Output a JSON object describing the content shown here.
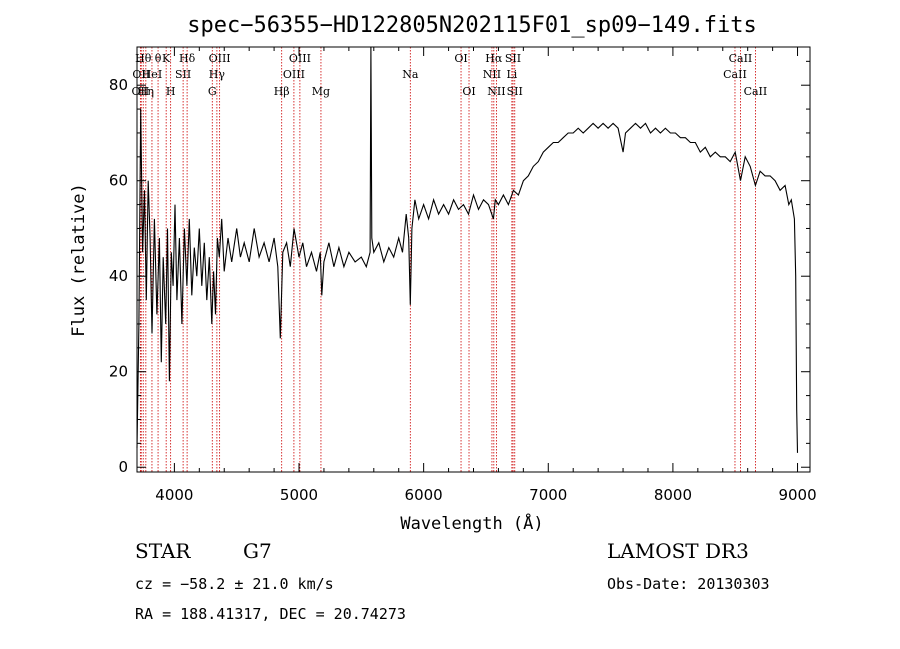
{
  "figure": {
    "object_type": "STAR",
    "spectral_class": "G7",
    "survey": "LAMOST DR3",
    "cz_text": "cz = −58.2 ± 21.0 km/s",
    "obs_date_text": "Obs-Date: 20130303",
    "radec_text": "RA = 188.41317, DEC =  20.74273"
  },
  "chart_data": {
    "type": "line",
    "title": "spec−56355−HD122805N202115F01_sp09−149.fits",
    "xlabel": "Wavelength (Å)",
    "ylabel": "Flux (relative)",
    "xlim": [
      3700,
      9100
    ],
    "ylim": [
      -1,
      88
    ],
    "xticks": [
      4000,
      5000,
      6000,
      7000,
      8000,
      9000
    ],
    "yticks": [
      0,
      20,
      40,
      60,
      80
    ],
    "grid": false,
    "series_color": "#000000",
    "line_marker_color": "#cc0000",
    "spectrum": [
      [
        3700,
        4
      ],
      [
        3715,
        30
      ],
      [
        3730,
        75
      ],
      [
        3745,
        45
      ],
      [
        3760,
        58
      ],
      [
        3775,
        35
      ],
      [
        3790,
        60
      ],
      [
        3805,
        48
      ],
      [
        3820,
        28
      ],
      [
        3840,
        52
      ],
      [
        3860,
        32
      ],
      [
        3880,
        48
      ],
      [
        3895,
        22
      ],
      [
        3910,
        44
      ],
      [
        3930,
        30
      ],
      [
        3945,
        50
      ],
      [
        3960,
        18
      ],
      [
        3975,
        45
      ],
      [
        3990,
        38
      ],
      [
        4005,
        55
      ],
      [
        4020,
        35
      ],
      [
        4040,
        48
      ],
      [
        4060,
        30
      ],
      [
        4080,
        50
      ],
      [
        4100,
        38
      ],
      [
        4120,
        52
      ],
      [
        4140,
        36
      ],
      [
        4160,
        46
      ],
      [
        4180,
        40
      ],
      [
        4200,
        50
      ],
      [
        4220,
        38
      ],
      [
        4240,
        47
      ],
      [
        4260,
        35
      ],
      [
        4280,
        44
      ],
      [
        4300,
        30
      ],
      [
        4315,
        41
      ],
      [
        4330,
        32
      ],
      [
        4345,
        48
      ],
      [
        4360,
        44
      ],
      [
        4380,
        52
      ],
      [
        4400,
        41
      ],
      [
        4430,
        48
      ],
      [
        4460,
        43
      ],
      [
        4500,
        50
      ],
      [
        4530,
        44
      ],
      [
        4560,
        47
      ],
      [
        4600,
        43
      ],
      [
        4640,
        50
      ],
      [
        4680,
        44
      ],
      [
        4720,
        47
      ],
      [
        4760,
        43
      ],
      [
        4800,
        48
      ],
      [
        4830,
        42
      ],
      [
        4850,
        27
      ],
      [
        4870,
        45
      ],
      [
        4900,
        47
      ],
      [
        4930,
        42
      ],
      [
        4960,
        50
      ],
      [
        5000,
        44
      ],
      [
        5030,
        47
      ],
      [
        5060,
        42
      ],
      [
        5100,
        45
      ],
      [
        5140,
        41
      ],
      [
        5170,
        45
      ],
      [
        5183,
        36
      ],
      [
        5200,
        43
      ],
      [
        5240,
        47
      ],
      [
        5280,
        42
      ],
      [
        5320,
        46
      ],
      [
        5360,
        42
      ],
      [
        5400,
        45
      ],
      [
        5450,
        43
      ],
      [
        5500,
        44
      ],
      [
        5540,
        42
      ],
      [
        5570,
        45
      ],
      [
        5577,
        90
      ],
      [
        5584,
        48
      ],
      [
        5600,
        45
      ],
      [
        5640,
        47
      ],
      [
        5680,
        43
      ],
      [
        5720,
        46
      ],
      [
        5760,
        44
      ],
      [
        5800,
        48
      ],
      [
        5830,
        45
      ],
      [
        5860,
        53
      ],
      [
        5880,
        48
      ],
      [
        5893,
        34
      ],
      [
        5906,
        50
      ],
      [
        5930,
        56
      ],
      [
        5960,
        52
      ],
      [
        6000,
        55
      ],
      [
        6040,
        52
      ],
      [
        6080,
        56
      ],
      [
        6120,
        53
      ],
      [
        6160,
        55
      ],
      [
        6200,
        53
      ],
      [
        6240,
        56
      ],
      [
        6280,
        54
      ],
      [
        6320,
        55
      ],
      [
        6360,
        53
      ],
      [
        6400,
        57
      ],
      [
        6440,
        54
      ],
      [
        6480,
        56
      ],
      [
        6520,
        55
      ],
      [
        6560,
        52
      ],
      [
        6575,
        56
      ],
      [
        6600,
        55
      ],
      [
        6640,
        57
      ],
      [
        6680,
        55
      ],
      [
        6720,
        58
      ],
      [
        6760,
        57
      ],
      [
        6800,
        60
      ],
      [
        6840,
        61
      ],
      [
        6880,
        63
      ],
      [
        6920,
        64
      ],
      [
        6960,
        66
      ],
      [
        7000,
        67
      ],
      [
        7040,
        68
      ],
      [
        7080,
        68
      ],
      [
        7120,
        69
      ],
      [
        7160,
        70
      ],
      [
        7200,
        70
      ],
      [
        7240,
        71
      ],
      [
        7280,
        70
      ],
      [
        7320,
        71
      ],
      [
        7360,
        72
      ],
      [
        7400,
        71
      ],
      [
        7440,
        72
      ],
      [
        7480,
        71
      ],
      [
        7520,
        72
      ],
      [
        7560,
        71
      ],
      [
        7600,
        66
      ],
      [
        7620,
        70
      ],
      [
        7660,
        71
      ],
      [
        7700,
        72
      ],
      [
        7740,
        71
      ],
      [
        7780,
        72
      ],
      [
        7820,
        70
      ],
      [
        7860,
        71
      ],
      [
        7900,
        70
      ],
      [
        7940,
        71
      ],
      [
        7980,
        70
      ],
      [
        8020,
        70
      ],
      [
        8060,
        69
      ],
      [
        8100,
        69
      ],
      [
        8140,
        68
      ],
      [
        8180,
        68
      ],
      [
        8220,
        66
      ],
      [
        8260,
        67
      ],
      [
        8300,
        65
      ],
      [
        8340,
        66
      ],
      [
        8380,
        65
      ],
      [
        8420,
        65
      ],
      [
        8460,
        64
      ],
      [
        8500,
        66
      ],
      [
        8542,
        60
      ],
      [
        8580,
        65
      ],
      [
        8620,
        63
      ],
      [
        8662,
        59
      ],
      [
        8700,
        62
      ],
      [
        8740,
        61
      ],
      [
        8780,
        61
      ],
      [
        8820,
        60
      ],
      [
        8860,
        58
      ],
      [
        8900,
        59
      ],
      [
        8930,
        55
      ],
      [
        8950,
        56
      ],
      [
        8975,
        52
      ],
      [
        8985,
        40
      ],
      [
        8993,
        12
      ],
      [
        9000,
        3
      ]
    ],
    "lines": [
      {
        "wl": 3727,
        "label": "OII",
        "row": 2
      },
      {
        "wl": 3734,
        "label": "OII",
        "row": 1
      },
      {
        "wl": 3750,
        "label": "Hθ",
        "row": 0
      },
      {
        "wl": 3771,
        "label": "Hη",
        "row": 2
      },
      {
        "wl": 3820,
        "label": "HeI",
        "row": 1
      },
      {
        "wl": 3869,
        "label": "θ",
        "row": 0
      },
      {
        "wl": 3934,
        "label": "K",
        "row": 0
      },
      {
        "wl": 3970,
        "label": "H",
        "row": 2
      },
      {
        "wl": 4070,
        "label": "SII",
        "row": 1
      },
      {
        "wl": 4102,
        "label": "Hδ",
        "row": 0
      },
      {
        "wl": 4304,
        "label": "G",
        "row": 2
      },
      {
        "wl": 4341,
        "label": "Hγ",
        "row": 1
      },
      {
        "wl": 4363,
        "label": "OIII",
        "row": 0
      },
      {
        "wl": 4861,
        "label": "Hβ",
        "row": 2
      },
      {
        "wl": 4959,
        "label": "OIII",
        "row": 1
      },
      {
        "wl": 5007,
        "label": "OIII",
        "row": 0
      },
      {
        "wl": 5176,
        "label": "Mg",
        "row": 2
      },
      {
        "wl": 5893,
        "label": "Na",
        "row": 1
      },
      {
        "wl": 6300,
        "label": "OI",
        "row": 0
      },
      {
        "wl": 6364,
        "label": "OI",
        "row": 2
      },
      {
        "wl": 6548,
        "label": "NII",
        "row": 1
      },
      {
        "wl": 6563,
        "label": "Hα",
        "row": 0
      },
      {
        "wl": 6584,
        "label": "NII",
        "row": 2
      },
      {
        "wl": 6708,
        "label": "Li",
        "row": 1
      },
      {
        "wl": 6717,
        "label": "SII",
        "row": 0
      },
      {
        "wl": 6731,
        "label": "SII",
        "row": 2
      },
      {
        "wl": 8498,
        "label": "CaII",
        "row": 1
      },
      {
        "wl": 8542,
        "label": "CaII",
        "row": 0
      },
      {
        "wl": 8662,
        "label": "CaII",
        "row": 2
      }
    ]
  }
}
